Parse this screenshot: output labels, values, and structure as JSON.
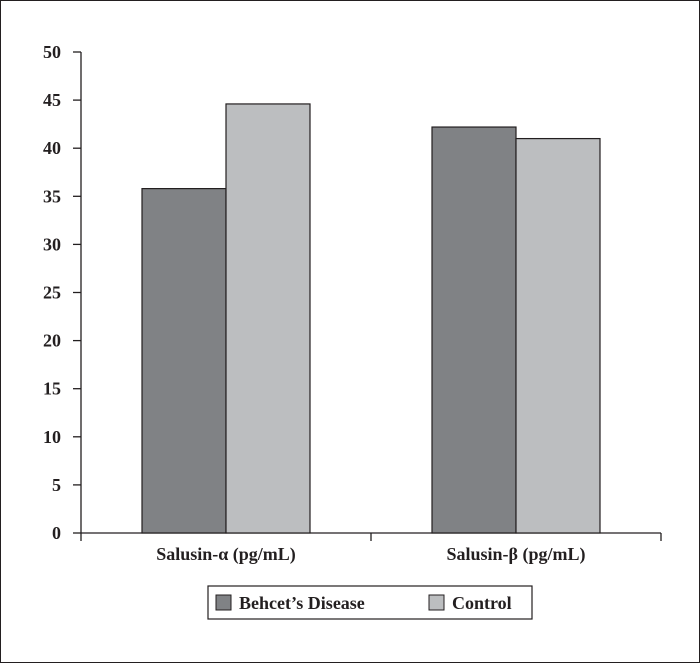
{
  "chart_data": {
    "type": "bar",
    "categories": [
      "Salusin-α (pg/mL)",
      "Salusin-β (pg/mL)"
    ],
    "series": [
      {
        "name": "Behcet’s Disease",
        "values": [
          35.8,
          42.2
        ],
        "color": "#808285"
      },
      {
        "name": "Control",
        "values": [
          44.6,
          41.0
        ],
        "color": "#bcbec0"
      }
    ],
    "ylim": [
      0,
      50
    ],
    "yticks": [
      0,
      5,
      10,
      15,
      20,
      25,
      30,
      35,
      40,
      45,
      50
    ],
    "grid": false,
    "legend_position": "bottom-center"
  }
}
